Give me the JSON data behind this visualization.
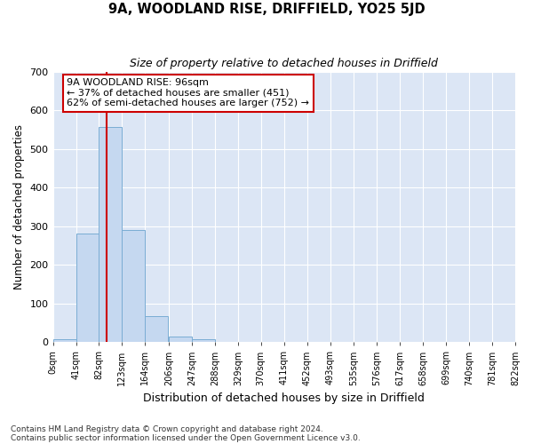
{
  "title": "9A, WOODLAND RISE, DRIFFIELD, YO25 5JD",
  "subtitle": "Size of property relative to detached houses in Driffield",
  "xlabel": "Distribution of detached houses by size in Driffield",
  "ylabel": "Number of detached properties",
  "bar_heights": [
    8,
    280,
    557,
    290,
    68,
    14,
    7,
    0,
    0,
    0,
    0,
    0,
    0,
    0,
    0,
    0,
    0,
    0,
    0,
    0
  ],
  "bin_edges": [
    0,
    41,
    82,
    123,
    164,
    206,
    247,
    288,
    329,
    370,
    411,
    452,
    493,
    535,
    576,
    617,
    658,
    699,
    740,
    781,
    822
  ],
  "tick_labels": [
    "0sqm",
    "41sqm",
    "82sqm",
    "123sqm",
    "164sqm",
    "206sqm",
    "247sqm",
    "288sqm",
    "329sqm",
    "370sqm",
    "411sqm",
    "452sqm",
    "493sqm",
    "535sqm",
    "576sqm",
    "617sqm",
    "658sqm",
    "699sqm",
    "740sqm",
    "781sqm",
    "822sqm"
  ],
  "bar_color": "#c5d8f0",
  "bar_edge_color": "#7aadd4",
  "fig_background": "#ffffff",
  "plot_background": "#dce6f5",
  "vline_x": 96,
  "vline_color": "#cc0000",
  "ylim": [
    0,
    700
  ],
  "yticks": [
    0,
    100,
    200,
    300,
    400,
    500,
    600,
    700
  ],
  "annotation_lines": [
    "9A WOODLAND RISE: 96sqm",
    "← 37% of detached houses are smaller (451)",
    "62% of semi-detached houses are larger (752) →"
  ],
  "annotation_box_facecolor": "#ffffff",
  "annotation_box_edgecolor": "#cc0000",
  "footnote1": "Contains HM Land Registry data © Crown copyright and database right 2024.",
  "footnote2": "Contains public sector information licensed under the Open Government Licence v3.0."
}
